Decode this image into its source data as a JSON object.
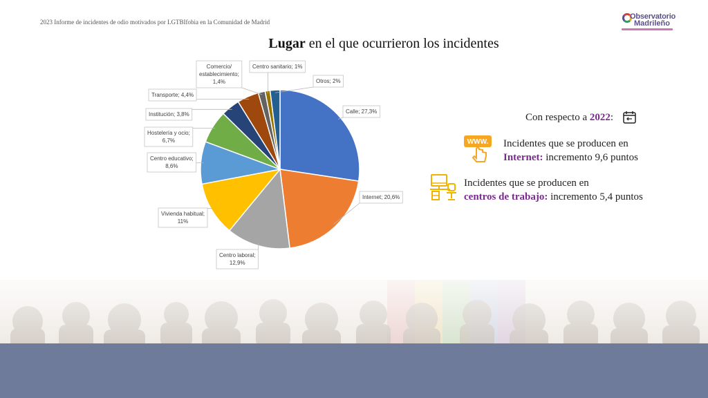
{
  "header": {
    "report_title": "2023 Informe de incidentes de odio motivados por LGTBIfobia en la Comunidad de Madrid",
    "logo_line1": "Observatorio",
    "logo_line2": "Madrileño"
  },
  "title": {
    "bold": "Lugar",
    "rest": " en el que ocurrieron los incidentes"
  },
  "chart_data": {
    "type": "pie",
    "unit": "%",
    "slices": [
      {
        "label": "Calle; 27,3%",
        "value": 27.3,
        "color": "#4472c4"
      },
      {
        "label": "Internet; 20,6%",
        "value": 20.6,
        "color": "#ed7d31"
      },
      {
        "label": "Centro laboral; 12,9%",
        "value": 12.9,
        "color": "#a5a5a5"
      },
      {
        "label": "Vivienda habitual; 11%",
        "value": 11,
        "color": "#ffc000"
      },
      {
        "label": "Centro educativo; 8,6%",
        "value": 8.6,
        "color": "#5b9bd5"
      },
      {
        "label": "Hostelería y ocio; 6,7%",
        "value": 6.7,
        "color": "#70ad47"
      },
      {
        "label": "Institución; 3,8%",
        "value": 3.8,
        "color": "#264478"
      },
      {
        "label": "Transporte; 4,4%",
        "value": 4.4,
        "color": "#9e480e"
      },
      {
        "label": "Comercio/ establecimiento; 1,4%",
        "value": 1.4,
        "color": "#636363"
      },
      {
        "label": "Centro sanitario; 1%",
        "value": 1,
        "color": "#997300"
      },
      {
        "label": "Otros; 2%",
        "value": 2,
        "color": "#255e91"
      }
    ]
  },
  "comparison": {
    "intro": "Con respecto a ",
    "year": "2022",
    "colon": ":",
    "internet_line1": "Incidentes que se producen en",
    "internet_accent": "Internet:",
    "internet_rest": " incremento 9,6 puntos",
    "work_line1": "Incidentes que se producen en",
    "work_accent": "centros de trabajo:",
    "work_rest": " incremento 5,4 puntos",
    "www_label": "WWW."
  },
  "colors": {
    "accent": "#7a2a8f",
    "icon_orange": "#f5a623",
    "icon_yellow": "#f0b400",
    "footer": "#6f7b9b"
  }
}
